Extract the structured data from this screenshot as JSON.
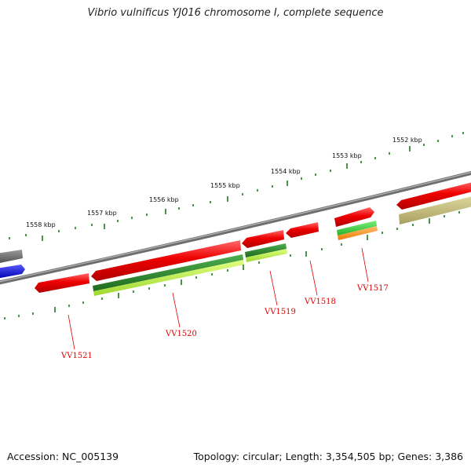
{
  "title": "Vibrio vulnificus YJ016 chromosome I, complete sequence",
  "footer": {
    "accession": "Accession: NC_005139",
    "stats": "Topology: circular; Length: 3,354,505 bp; Genes: 3,386"
  },
  "ticks": [
    "1552 kbp",
    "1553 kbp",
    "1554 kbp",
    "1555 kbp",
    "1556 kbp",
    "1557 kbp",
    "1558 kbp"
  ],
  "genes": [
    "VV1517",
    "VV1518",
    "VV1519",
    "VV1520",
    "VV1521"
  ],
  "colors": {
    "gene": "#ee0000",
    "backbone": "#888888",
    "tick": "#1f7a1f",
    "dark_green": "#2e8b2e",
    "light_green": "#b8f040",
    "orange": "#ff8c1a",
    "khaki": "#c8c080",
    "blue": "#0000ee",
    "gray": "#666666"
  }
}
